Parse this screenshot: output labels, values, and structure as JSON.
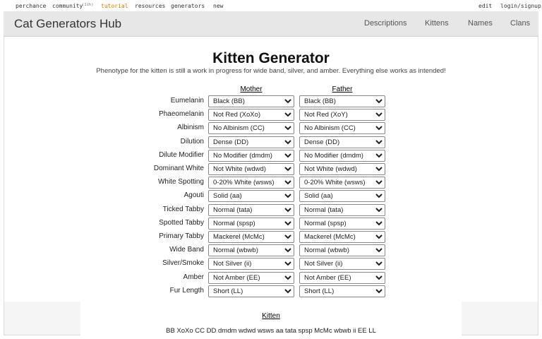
{
  "topbar": {
    "left": [
      "perchance",
      "community",
      "(1ih)",
      "tutorial",
      "resources",
      "generators",
      "new"
    ],
    "right": [
      "edit",
      "login/signup"
    ]
  },
  "header": {
    "title": "Cat Generators Hub",
    "nav": [
      "Descriptions",
      "Kittens",
      "Names",
      "Clans"
    ]
  },
  "main": {
    "title": "Kitten Generator",
    "subtitle": "Phenotype for the kitten is still a work in progress for wide band, silver, and amber. Everything else works as intended!",
    "columns": [
      "Mother",
      "Father"
    ],
    "rows": [
      {
        "label": "Eumelanin",
        "mother": "Black (BB)",
        "father": "Black (BB)"
      },
      {
        "label": "Phaeomelanin",
        "mother": "Not Red (XoXo)",
        "father": "Not Red (XoY)"
      },
      {
        "label": "Albinism",
        "mother": "No Albinism (CC)",
        "father": "No Albinism (CC)"
      },
      {
        "label": "Dilution",
        "mother": "Dense (DD)",
        "father": "Dense (DD)"
      },
      {
        "label": "Dilute Modifier",
        "mother": "No Modifier (dmdm)",
        "father": "No Modifier (dmdm)"
      },
      {
        "label": "Dominant White",
        "mother": "Not White (wdwd)",
        "father": "Not White (wdwd)"
      },
      {
        "label": "White Spotting",
        "mother": "0-20% White (wsws)",
        "father": "0-20% White (wsws)"
      },
      {
        "label": "Agouti",
        "mother": "Solid (aa)",
        "father": "Solid (aa)"
      },
      {
        "label": "Ticked Tabby",
        "mother": "Normal (tata)",
        "father": "Normal (tata)"
      },
      {
        "label": "Spotted Tabby",
        "mother": "Normal (spsp)",
        "father": "Normal (spsp)"
      },
      {
        "label": "Primary Tabby",
        "mother": "Mackerel (McMc)",
        "father": "Mackerel (McMc)"
      },
      {
        "label": "Wide Band",
        "mother": "Normal (wbwb)",
        "father": "Normal (wbwb)"
      },
      {
        "label": "Silver/Smoke",
        "mother": "Not Silver (ii)",
        "father": "Not Silver (ii)"
      },
      {
        "label": "Amber",
        "mother": "Not Amber (EE)",
        "father": "Not Amber (EE)"
      },
      {
        "label": "Fur Length",
        "mother": "Short (LL)",
        "father": "Short (LL)"
      }
    ]
  },
  "kitten": {
    "title": "Kitten",
    "genotype": "BB XoXo CC DD dmdm wdwd wsws aa tata spsp McMc wbwb ii EE LL"
  }
}
